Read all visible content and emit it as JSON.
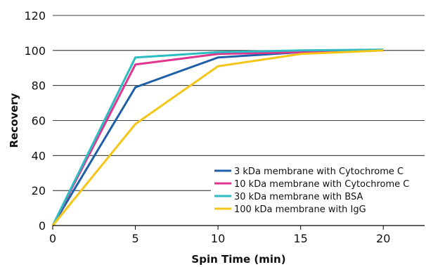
{
  "chart_data": {
    "type": "line",
    "title": "",
    "xlabel": "Spin Time (min)",
    "ylabel": "Recovery",
    "xlim": [
      0,
      22.5
    ],
    "ylim": [
      0,
      120
    ],
    "xticks": [
      0,
      5,
      10,
      15,
      20
    ],
    "yticks": [
      0,
      20,
      40,
      60,
      80,
      100,
      120
    ],
    "grid": "horizontal",
    "legend_position": "lower-right",
    "series": [
      {
        "name": "3 kDa membrane with Cytochrome C",
        "color": "#1f5fa8",
        "x": [
          0,
          5,
          10,
          15,
          20
        ],
        "y": [
          0,
          79,
          96,
          99,
          100
        ]
      },
      {
        "name": "10 kDa membrane with Cytochrome C",
        "color": "#e0348e",
        "x": [
          0,
          5,
          10,
          15,
          20
        ],
        "y": [
          0,
          92,
          98,
          99,
          100
        ]
      },
      {
        "name": "30 kDa membrane with BSA",
        "color": "#2bbcc4",
        "x": [
          0,
          5,
          10,
          15,
          20
        ],
        "y": [
          0,
          96,
          99,
          100,
          100.5
        ]
      },
      {
        "name": "100 kDa membrane with IgG",
        "color": "#f5c518",
        "x": [
          0,
          5,
          10,
          15,
          20
        ],
        "y": [
          0,
          58,
          91,
          98,
          100
        ]
      }
    ]
  }
}
